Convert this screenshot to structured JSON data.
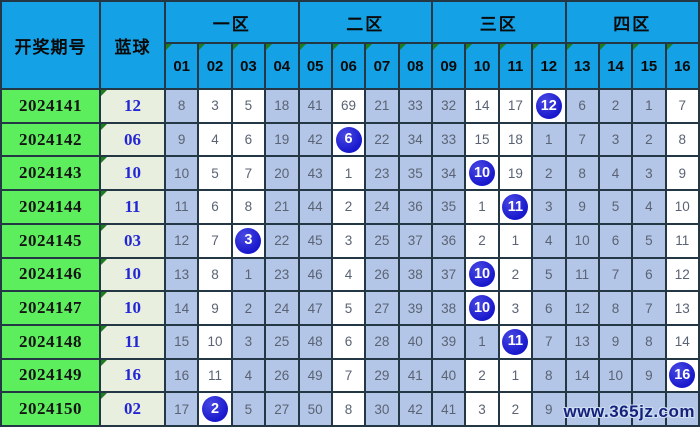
{
  "chart_data": {
    "type": "table",
    "period_label": "开奖期号",
    "blue_label": "蓝球",
    "zones": [
      {
        "label": "一区",
        "cols": [
          "01",
          "02",
          "03",
          "04"
        ]
      },
      {
        "label": "二区",
        "cols": [
          "05",
          "06",
          "07",
          "08"
        ]
      },
      {
        "label": "三区",
        "cols": [
          "09",
          "10",
          "11",
          "12"
        ]
      },
      {
        "label": "四区",
        "cols": [
          "13",
          "14",
          "15",
          "16"
        ]
      }
    ],
    "rows": [
      {
        "period": "2024141",
        "blue": "12",
        "values": [
          "8",
          "3",
          "5",
          "18",
          "41",
          "69",
          "21",
          "33",
          "32",
          "14",
          "17",
          "12",
          "6",
          "2",
          "1",
          "7"
        ],
        "bg": "BWWBBWBBBWWWBBBW",
        "hit": 11
      },
      {
        "period": "2024142",
        "blue": "06",
        "values": [
          "9",
          "4",
          "6",
          "19",
          "42",
          "6",
          "22",
          "34",
          "33",
          "15",
          "18",
          "1",
          "7",
          "3",
          "2",
          "8"
        ],
        "bg": "BWWBBWBBBWWBBBBW",
        "hit": 5
      },
      {
        "period": "2024143",
        "blue": "10",
        "values": [
          "10",
          "5",
          "7",
          "20",
          "43",
          "1",
          "23",
          "35",
          "34",
          "10",
          "19",
          "2",
          "8",
          "4",
          "3",
          "9"
        ],
        "bg": "BWWBBWBBBWWBBBBW",
        "hit": 9
      },
      {
        "period": "2024144",
        "blue": "11",
        "values": [
          "11",
          "6",
          "8",
          "21",
          "44",
          "2",
          "24",
          "36",
          "35",
          "1",
          "11",
          "3",
          "9",
          "5",
          "4",
          "10"
        ],
        "bg": "BWWBBWBBBWWBBBBW",
        "hit": 10
      },
      {
        "period": "2024145",
        "blue": "03",
        "values": [
          "12",
          "7",
          "3",
          "22",
          "45",
          "3",
          "25",
          "37",
          "36",
          "2",
          "1",
          "4",
          "10",
          "6",
          "5",
          "11"
        ],
        "bg": "BWWBBWBBBWWBBBBW",
        "hit": 2
      },
      {
        "period": "2024146",
        "blue": "10",
        "values": [
          "13",
          "8",
          "1",
          "23",
          "46",
          "4",
          "26",
          "38",
          "37",
          "10",
          "2",
          "5",
          "11",
          "7",
          "6",
          "12"
        ],
        "bg": "BWBBBWBBBWWBBBBW",
        "hit": 9
      },
      {
        "period": "2024147",
        "blue": "10",
        "values": [
          "14",
          "9",
          "2",
          "24",
          "47",
          "5",
          "27",
          "39",
          "38",
          "10",
          "3",
          "6",
          "12",
          "8",
          "7",
          "13"
        ],
        "bg": "BWBBBWBBBWWBBBBW",
        "hit": 9
      },
      {
        "period": "2024148",
        "blue": "11",
        "values": [
          "15",
          "10",
          "3",
          "25",
          "48",
          "6",
          "28",
          "40",
          "39",
          "1",
          "11",
          "7",
          "13",
          "9",
          "8",
          "14"
        ],
        "bg": "BWBBBWBBBBWBBBBW",
        "hit": 10
      },
      {
        "period": "2024149",
        "blue": "16",
        "values": [
          "16",
          "11",
          "4",
          "26",
          "49",
          "7",
          "29",
          "41",
          "40",
          "2",
          "1",
          "8",
          "14",
          "10",
          "9",
          "16"
        ],
        "bg": "BWBBBWBBBWWBBBBW",
        "hit": 15
      },
      {
        "period": "2024150",
        "blue": "02",
        "values": [
          "17",
          "2",
          "5",
          "27",
          "50",
          "8",
          "30",
          "42",
          "41",
          "3",
          "2",
          "9",
          "",
          "",
          "",
          ""
        ],
        "bg": "BWBBBWBBBWWBBBBB",
        "hit": 1
      }
    ],
    "watermark": "www.365jz.com"
  },
  "colors": {
    "header-bg": "#14a1e6",
    "header-text": "#0a0a0a",
    "border": "#233744",
    "period-bg": "#5cee5c",
    "blueball-bg": "#e9efdf",
    "blueball-text": "#2326d4",
    "cell-blue": "#b4c6e7",
    "cell-white": "#ffffff",
    "data-text": "#5a6373",
    "circle-bg": "#1717cc",
    "wedge": "#1e7d1f",
    "watermark-text": "#16217c"
  }
}
